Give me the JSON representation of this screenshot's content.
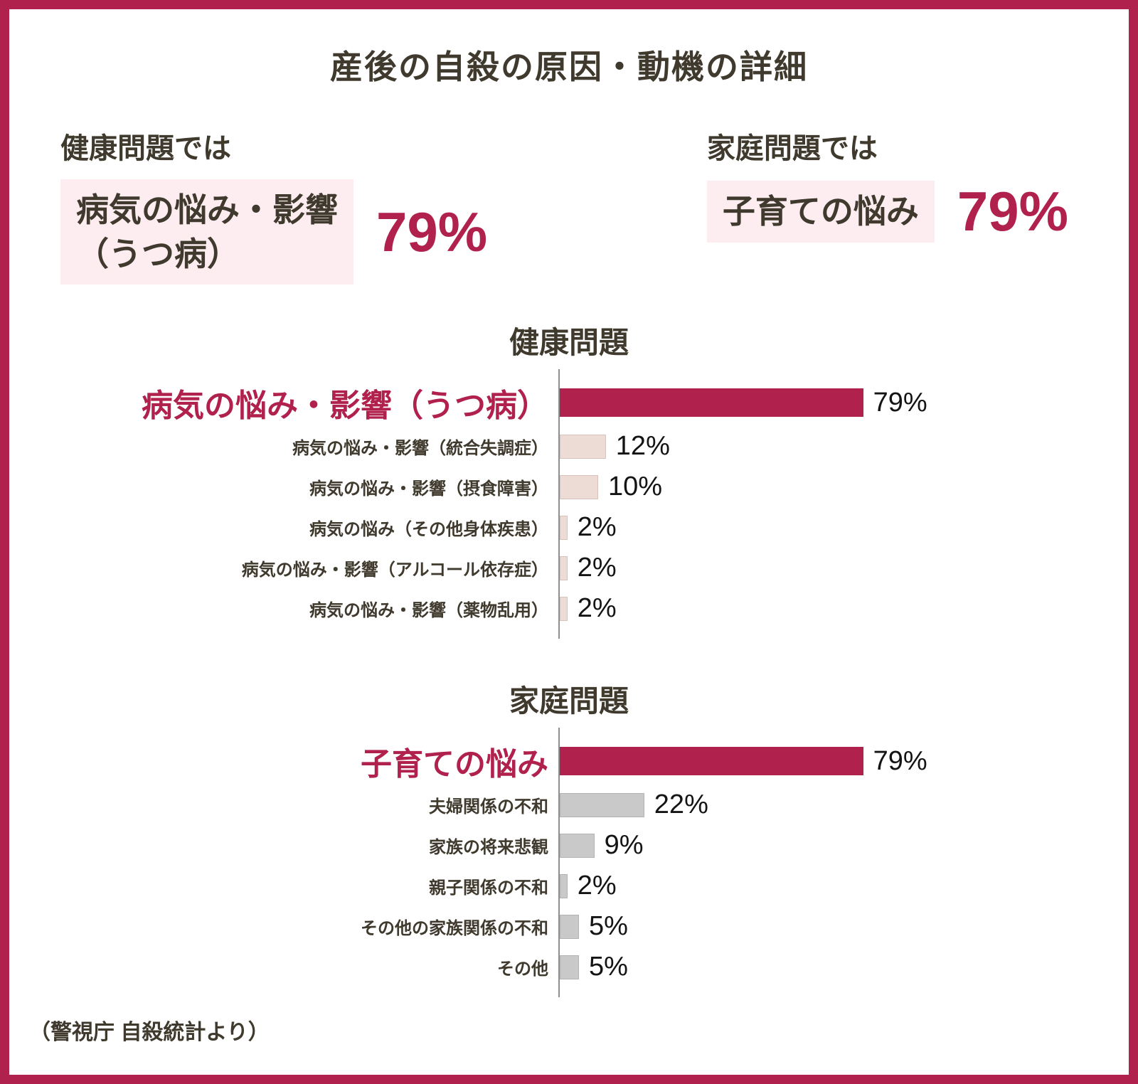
{
  "page": {
    "title": "産後の自殺の原因・動機の詳細",
    "source": "（警視庁 自殺統計より）"
  },
  "colors": {
    "accent": "#b0214d",
    "text_dark": "#3f3a2d",
    "highlight_bg": "#fdecf0",
    "health_bar": "#eddbd5",
    "health_bar_border": "#d9c2ba",
    "family_bar": "#c9c9c9",
    "family_bar_border": "#b2b2b2",
    "axis": "#8f8f8f"
  },
  "highlights": [
    {
      "category_label": "健康問題では",
      "item_lines": [
        "病気の悩み・影響",
        "（うつ病）"
      ],
      "value": "79%"
    },
    {
      "category_label": "家庭問題では",
      "item_lines": [
        "子育ての悩み"
      ],
      "value": "79%"
    }
  ],
  "chart_data": [
    {
      "type": "bar",
      "title": "健康問題",
      "orientation": "horizontal",
      "xlim": [
        0,
        100
      ],
      "categories": [
        "病気の悩み・影響（うつ病）",
        "病気の悩み・影響（統合失調症）",
        "病気の悩み・影響（摂食障害）",
        "病気の悩み（その他身体疾患）",
        "病気の悩み・影響（アルコール依存症）",
        "病気の悩み・影響（薬物乱用）"
      ],
      "values": [
        79,
        12,
        10,
        2,
        2,
        2
      ],
      "value_labels": [
        "79%",
        "12%",
        "10%",
        "2%",
        "2%",
        "2%"
      ],
      "highlight_index": 0,
      "bar_color": "#eddbd5",
      "bar_border": "#d9c2ba",
      "highlight_color": "#b0214d"
    },
    {
      "type": "bar",
      "title": "家庭問題",
      "orientation": "horizontal",
      "xlim": [
        0,
        100
      ],
      "categories": [
        "子育ての悩み",
        "夫婦関係の不和",
        "家族の将来悲観",
        "親子関係の不和",
        "その他の家族関係の不和",
        "その他"
      ],
      "values": [
        79,
        22,
        9,
        2,
        5,
        5
      ],
      "value_labels": [
        "79%",
        "22%",
        "9%",
        "2%",
        "5%",
        "5%"
      ],
      "highlight_index": 0,
      "bar_color": "#c9c9c9",
      "bar_border": "#b2b2b2",
      "highlight_color": "#b0214d"
    }
  ]
}
